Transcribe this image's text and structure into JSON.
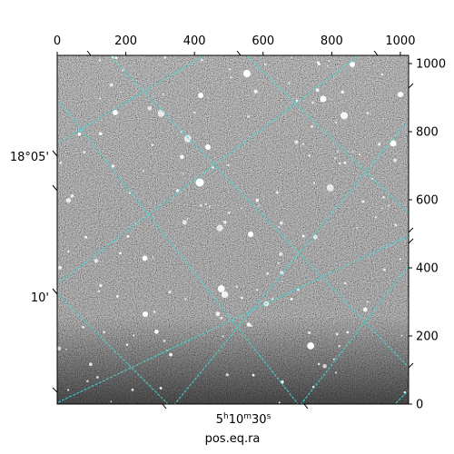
{
  "plot": {
    "type": "astronomical-image-with-wcs-grid",
    "x_label": "pos.eq.ra",
    "pixel_axes": {
      "x_ticks": [
        "0",
        "200",
        "400",
        "600",
        "800",
        "1000"
      ],
      "y_ticks": [
        "0",
        "200",
        "400",
        "600",
        "800",
        "1000"
      ],
      "x_range": [
        0,
        1024
      ],
      "y_range": [
        0,
        1024
      ]
    },
    "world_axes": {
      "ra_tick_main": "5",
      "ra_tick_h": "h",
      "ra_tick_mid": "10",
      "ra_tick_m": "m",
      "ra_tick_tail": "30",
      "ra_tick_s": "s",
      "dec_ticks": [
        "18°05'",
        "10'"
      ]
    },
    "grid_color": "#40d8d8",
    "image_colormap": "grayscale"
  }
}
